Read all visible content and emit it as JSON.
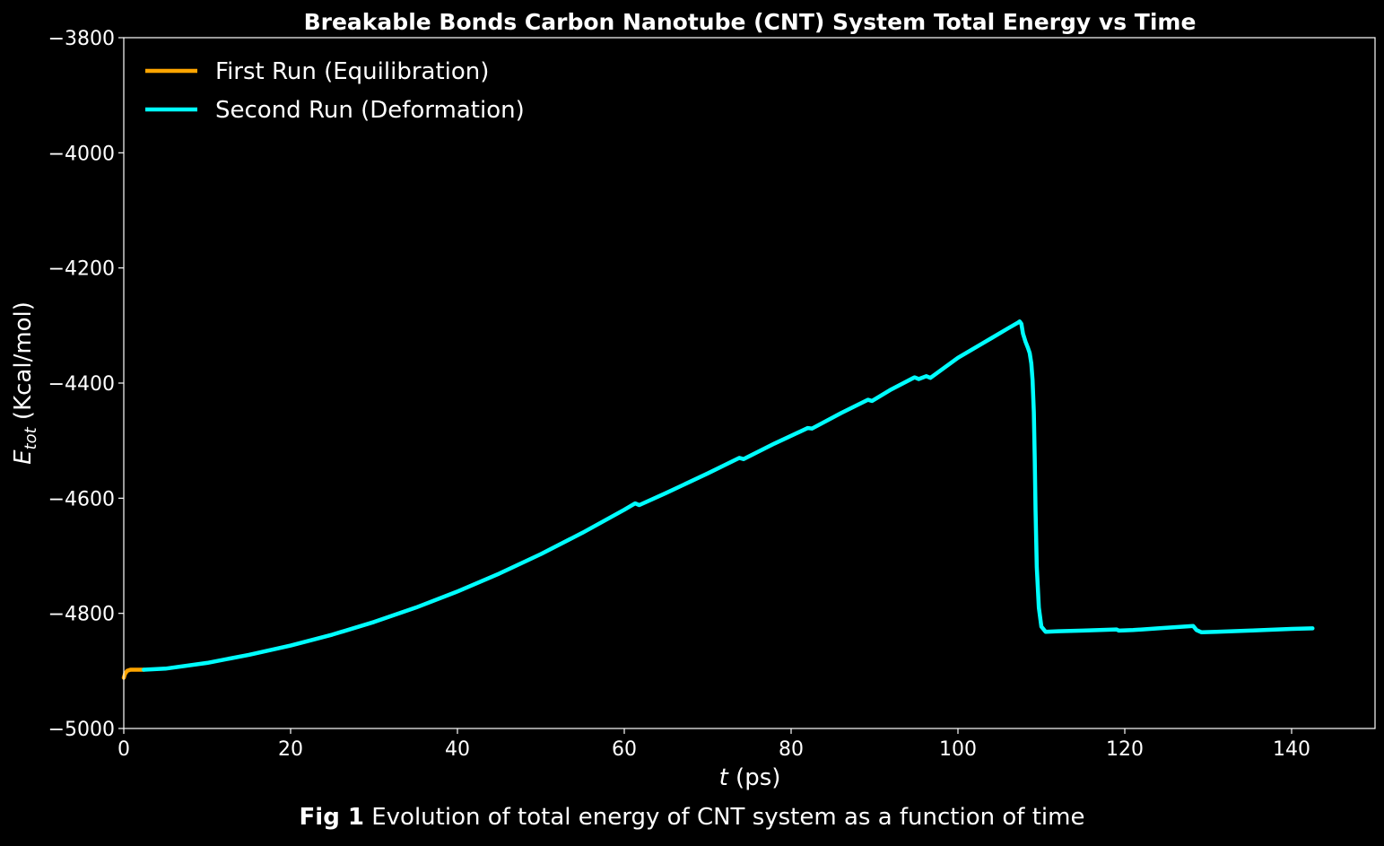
{
  "chart_data": {
    "type": "line",
    "title": "Breakable Bonds Carbon Nanotube (CNT) System Total Energy vs Time",
    "xlabel": {
      "italic": "t",
      "rest": " (ps)"
    },
    "ylabel": {
      "main": "E",
      "sub": "tot",
      "rest": " (Kcal/mol)"
    },
    "xlim": [
      0,
      150
    ],
    "ylim": [
      -5000,
      -3800
    ],
    "xticks": [
      {
        "value": 0,
        "label": "0"
      },
      {
        "value": 20,
        "label": "20"
      },
      {
        "value": 40,
        "label": "40"
      },
      {
        "value": 60,
        "label": "60"
      },
      {
        "value": 80,
        "label": "80"
      },
      {
        "value": 100,
        "label": "100"
      },
      {
        "value": 120,
        "label": "120"
      },
      {
        "value": 140,
        "label": "140"
      }
    ],
    "yticks": [
      {
        "value": -5000,
        "label": "−5000"
      },
      {
        "value": -4800,
        "label": "−4800"
      },
      {
        "value": -4600,
        "label": "−4600"
      },
      {
        "value": -4400,
        "label": "−4400"
      },
      {
        "value": -4200,
        "label": "−4200"
      },
      {
        "value": -4000,
        "label": "−4000"
      },
      {
        "value": -3800,
        "label": "−3800"
      }
    ],
    "grid": false,
    "legend": "top-left",
    "background": "#000000",
    "axis_color": "#ffffff",
    "series": [
      {
        "name": "First Run (Equilibration)",
        "color": "#ffa500",
        "points": [
          [
            0.0,
            -4912
          ],
          [
            0.15,
            -4905
          ],
          [
            0.4,
            -4900
          ],
          [
            0.8,
            -4898
          ],
          [
            1.2,
            -4898
          ],
          [
            1.8,
            -4898
          ],
          [
            2.4,
            -4898
          ]
        ]
      },
      {
        "name": "Second Run (Deformation)",
        "color": "#00ffff",
        "points": [
          [
            2.4,
            -4898
          ],
          [
            5,
            -4896
          ],
          [
            10,
            -4886
          ],
          [
            15,
            -4872
          ],
          [
            20,
            -4856
          ],
          [
            25,
            -4837
          ],
          [
            30,
            -4815
          ],
          [
            35,
            -4790
          ],
          [
            40,
            -4762
          ],
          [
            45,
            -4731
          ],
          [
            50,
            -4697
          ],
          [
            55,
            -4660
          ],
          [
            60,
            -4620
          ],
          [
            61.3,
            -4609
          ],
          [
            61.8,
            -4612
          ],
          [
            65,
            -4591
          ],
          [
            70,
            -4557
          ],
          [
            73.8,
            -4530
          ],
          [
            74.3,
            -4532
          ],
          [
            78,
            -4505
          ],
          [
            82,
            -4478
          ],
          [
            82.5,
            -4479
          ],
          [
            86,
            -4452
          ],
          [
            89.2,
            -4429
          ],
          [
            89.7,
            -4431
          ],
          [
            92,
            -4411
          ],
          [
            94.8,
            -4390
          ],
          [
            95.3,
            -4393
          ],
          [
            96.2,
            -4388
          ],
          [
            96.7,
            -4391
          ],
          [
            100,
            -4356
          ],
          [
            104,
            -4322
          ],
          [
            106,
            -4305
          ],
          [
            107.2,
            -4295
          ],
          [
            107.4,
            -4293
          ],
          [
            107.6,
            -4297
          ],
          [
            107.8,
            -4314
          ],
          [
            108.1,
            -4328
          ],
          [
            108.4,
            -4339
          ],
          [
            108.6,
            -4348
          ],
          [
            108.8,
            -4366
          ],
          [
            108.95,
            -4395
          ],
          [
            109.1,
            -4450
          ],
          [
            109.2,
            -4530
          ],
          [
            109.3,
            -4620
          ],
          [
            109.45,
            -4720
          ],
          [
            109.7,
            -4790
          ],
          [
            110.0,
            -4823
          ],
          [
            110.5,
            -4832
          ],
          [
            112,
            -4831
          ],
          [
            115,
            -4830
          ],
          [
            119,
            -4828
          ],
          [
            119.3,
            -4830
          ],
          [
            121,
            -4829
          ],
          [
            124,
            -4826
          ],
          [
            128.2,
            -4822
          ],
          [
            128.6,
            -4829
          ],
          [
            129.2,
            -4833
          ],
          [
            131,
            -4832
          ],
          [
            135,
            -4830
          ],
          [
            140,
            -4827
          ],
          [
            142.5,
            -4826
          ]
        ]
      }
    ]
  },
  "caption": {
    "label": "Fig 1",
    "text": " Evolution of total energy of CNT system as a function of time"
  }
}
